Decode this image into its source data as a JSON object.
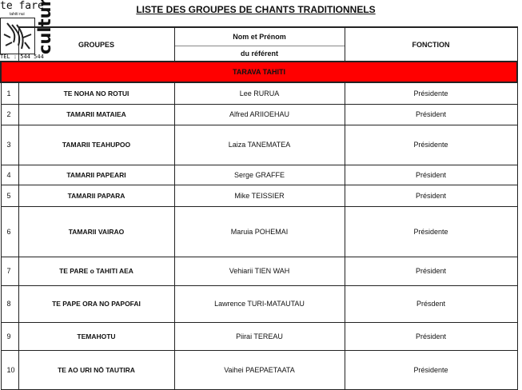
{
  "title": "LISTE DES GROUPES DE CHANTS TRADITIONNELS",
  "logo": {
    "text": "te fare",
    "sub": "tahiti nui",
    "side": "culture",
    "tel": "TEL : 544 544"
  },
  "headers": {
    "groupes": "GROUPES",
    "nom1": "Nom et Prénom",
    "nom2": "du référent",
    "fonction": "FONCTION"
  },
  "section": "TARAVA TAHITI",
  "rows": [
    {
      "n": "1",
      "g": "TE NOHA NO ROTUI",
      "nom": "Lee RURUA",
      "f": "Présidente"
    },
    {
      "n": "2",
      "g": "TAMARII MATAIEA",
      "nom": "Alfred ARIIOEHAU",
      "f": "Président"
    },
    {
      "n": "3",
      "g": "TAMARII TEAHUPOO",
      "nom": "Laiza TANEMATEA",
      "f": "Présidente"
    },
    {
      "n": "4",
      "g": "TAMARII PAPEARI",
      "nom": "Serge GRAFFE",
      "f": "Président"
    },
    {
      "n": "5",
      "g": "TAMARII PAPARA",
      "nom": "Mike TEISSIER",
      "f": "Président"
    },
    {
      "n": "6",
      "g": "TAMARII VAIRAO",
      "nom": "Maruia POHEMAI",
      "f": "Présidente"
    },
    {
      "n": "7",
      "g": "TE PARE  o TAHITI AEA",
      "nom": "Vehiarii TIEN WAH",
      "f": "Président"
    },
    {
      "n": "8",
      "g": "TE PAPE ORA NO PAPOFAI",
      "nom": "Lawrence TURI-MATAUTAU",
      "f": "Présdent"
    },
    {
      "n": "9",
      "g": "TEMAHOTU",
      "nom": "Piirai TEREAU",
      "f": "Président"
    },
    {
      "n": "10",
      "g": "TE AO URI NŌ TAUTIRA",
      "nom": "Vaihei PAEPAETAATA",
      "f": "Présidente"
    }
  ]
}
